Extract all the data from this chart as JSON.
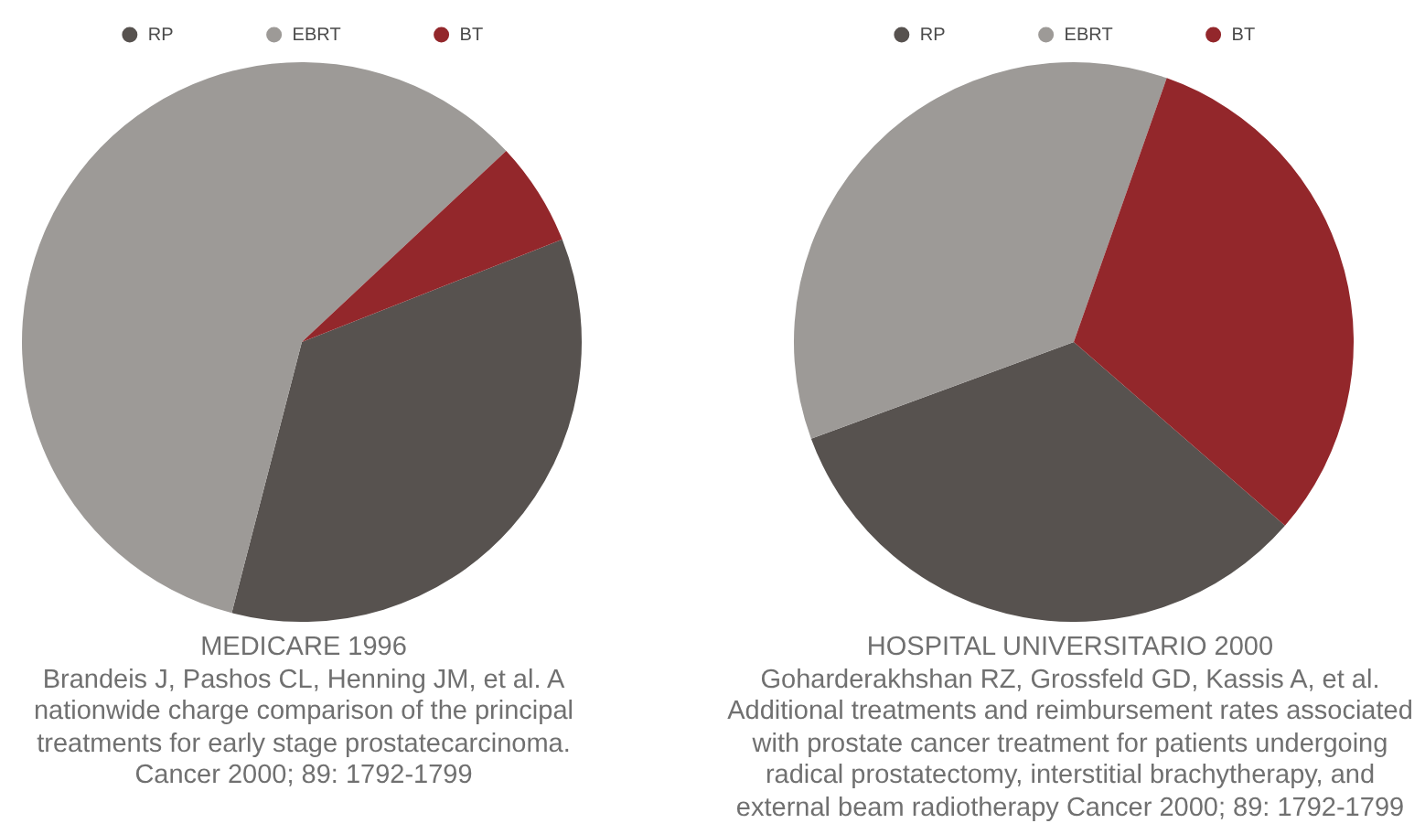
{
  "chart_data": [
    {
      "type": "pie",
      "title": "MEDICARE 1996",
      "annotations": [
        "Brandeis J, Pashos CL, Henning JM, et al. A nationwide charge comparison of the principal treatments for early stage prostatecarcinoma. Cancer 2000; 89: 1792-1799"
      ],
      "categories": [
        "RP",
        "EBRT",
        "BT"
      ],
      "values": [
        35,
        59,
        6
      ],
      "colors": [
        "#57524f",
        "#9d9a97",
        "#93272b"
      ],
      "legend": "top"
    },
    {
      "type": "pie",
      "title": "HOSPITAL UNIVERSITARIO 2000",
      "annotations": [
        "Goharderakhshan RZ, Grossfeld GD, Kassis A, et al. Additional treatments and reimbursement rates associated with prostate cancer treatment for patients undergoing radical prostatectomy, interstitial brachytherapy, and external beam radiotherapy Cancer 2000; 89: 1792-1799"
      ],
      "categories": [
        "RP",
        "EBRT",
        "BT"
      ],
      "values": [
        33,
        36,
        31
      ],
      "colors": [
        "#57524f",
        "#9d9a97",
        "#93272b"
      ],
      "legend": "top"
    }
  ]
}
